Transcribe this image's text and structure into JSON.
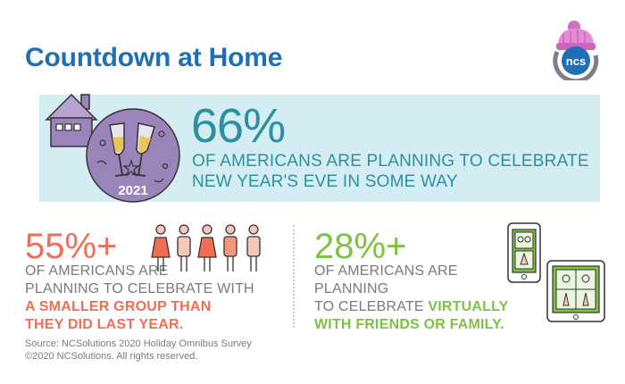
{
  "title": "Countdown at Home",
  "logo": {
    "text": "ncs",
    "icon": "ncs-logo-icon"
  },
  "stat1": {
    "value": "66%",
    "line1": "OF AMERICANS ARE PLANNING TO CELEBRATE",
    "line2": "NEW YEAR'S EVE IN SOME WAY",
    "year": "2021",
    "icons": [
      "house-icon",
      "champagne-toast-icon"
    ]
  },
  "stat2": {
    "value": "55%+",
    "line1": "OF AMERICANS ARE",
    "line2": "PLANNING TO CELEBRATE WITH",
    "line3": "A SMALLER GROUP THAN",
    "line4": "THEY DID LAST YEAR.",
    "icon": "people-group-icon"
  },
  "stat3": {
    "value": "28%+",
    "line1": "OF AMERICANS ARE PLANNING",
    "line2_plain": "TO CELEBRATE ",
    "line2_hi": "VIRTUALLY",
    "line3": "WITH FRIENDS OR FAMILY.",
    "icon": "video-call-devices-icon"
  },
  "footer": {
    "source": "Source: NCSolutions 2020 Holiday Omnibus Survey",
    "copyright": "©2020 NCSolutions. All rights reserved."
  },
  "colors": {
    "title": "#1e6fb8",
    "teal": "#2e8fa1",
    "coral": "#f06e54",
    "green": "#7dc242",
    "purple": "#9b84b9",
    "banner": "#d4edf3",
    "gray": "#7a7a7a"
  }
}
